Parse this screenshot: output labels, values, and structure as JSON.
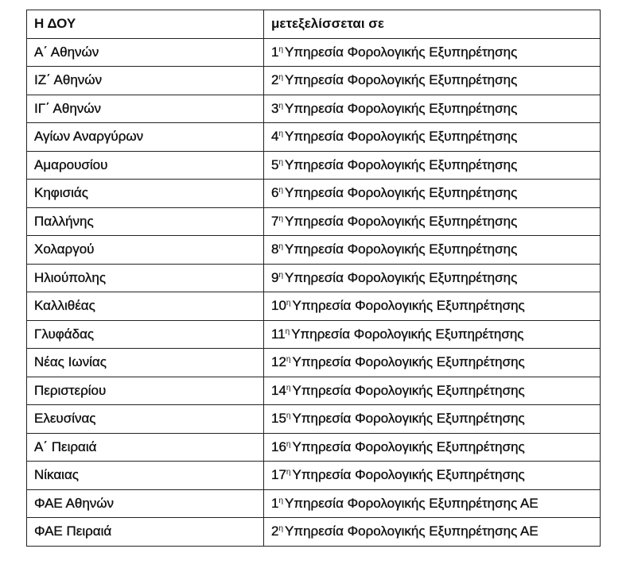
{
  "header": {
    "col1": "Η ΔΟΥ",
    "col2": "μετεξελίσσεται σε"
  },
  "rows": [
    {
      "doy": "Α΄  Αθηνών",
      "num": "1",
      "sup": "η",
      "service": "Υπηρεσία Φορολογικής Εξυπηρέτησης"
    },
    {
      "doy": "ΙΖ΄  Αθηνών",
      "num": "2",
      "sup": "η",
      "service": "Υπηρεσία Φορολογικής Εξυπηρέτησης"
    },
    {
      "doy": "ΙΓ΄  Αθηνών",
      "num": "3",
      "sup": "η",
      "service": "Υπηρεσία Φορολογικής Εξυπηρέτησης"
    },
    {
      "doy": "Αγίων Αναργύρων",
      "num": "4",
      "sup": "η",
      "service": "Υπηρεσία Φορολογικής Εξυπηρέτησης"
    },
    {
      "doy": "Αμαρουσίου",
      "num": "5",
      "sup": "η",
      "service": "Υπηρεσία Φορολογικής Εξυπηρέτησης"
    },
    {
      "doy": "Κηφισιάς",
      "num": "6",
      "sup": "η",
      "service": "Υπηρεσία Φορολογικής Εξυπηρέτησης"
    },
    {
      "doy": "Παλλήνης",
      "num": "7",
      "sup": "η",
      "service": "Υπηρεσία Φορολογικής Εξυπηρέτησης"
    },
    {
      "doy": "Χολαργού",
      "num": "8",
      "sup": "η",
      "service": "Υπηρεσία Φορολογικής Εξυπηρέτησης"
    },
    {
      "doy": "Ηλιούπολης",
      "num": "9",
      "sup": "η",
      "service": "Υπηρεσία Φορολογικής Εξυπηρέτησης"
    },
    {
      "doy": "Καλλιθέας",
      "num": "10",
      "sup": "η",
      "service": "Υπηρεσία Φορολογικής Εξυπηρέτησης"
    },
    {
      "doy": "Γλυφάδας",
      "num": "11",
      "sup": "η",
      "service": "Υπηρεσία Φορολογικής Εξυπηρέτησης"
    },
    {
      "doy": "Νέας Ιωνίας",
      "num": "12",
      "sup": "η",
      "service": "Υπηρεσία Φορολογικής Εξυπηρέτησης"
    },
    {
      "doy": "Περιστερίου",
      "num": "14",
      "sup": "η",
      "service": "Υπηρεσία Φορολογικής Εξυπηρέτησης"
    },
    {
      "doy": "Ελευσίνας",
      "num": "15",
      "sup": "η",
      "service": "Υπηρεσία Φορολογικής Εξυπηρέτησης"
    },
    {
      "doy": "Α΄  Πειραιά",
      "num": "16",
      "sup": "η",
      "service": "Υπηρεσία Φορολογικής Εξυπηρέτησης"
    },
    {
      "doy": "Νίκαιας",
      "num": "17",
      "sup": "η",
      "service": "Υπηρεσία Φορολογικής Εξυπηρέτησης"
    },
    {
      "doy": "ΦΑΕ Αθηνών",
      "num": "1",
      "sup": "η",
      "service": "Υπηρεσία Φορολογικής Εξυπηρέτησης ΑΕ"
    },
    {
      "doy": "ΦΑΕ Πειραιά",
      "num": "2",
      "sup": "η",
      "service": "Υπηρεσία Φορολογικής Εξυπηρέτησης ΑΕ"
    }
  ]
}
